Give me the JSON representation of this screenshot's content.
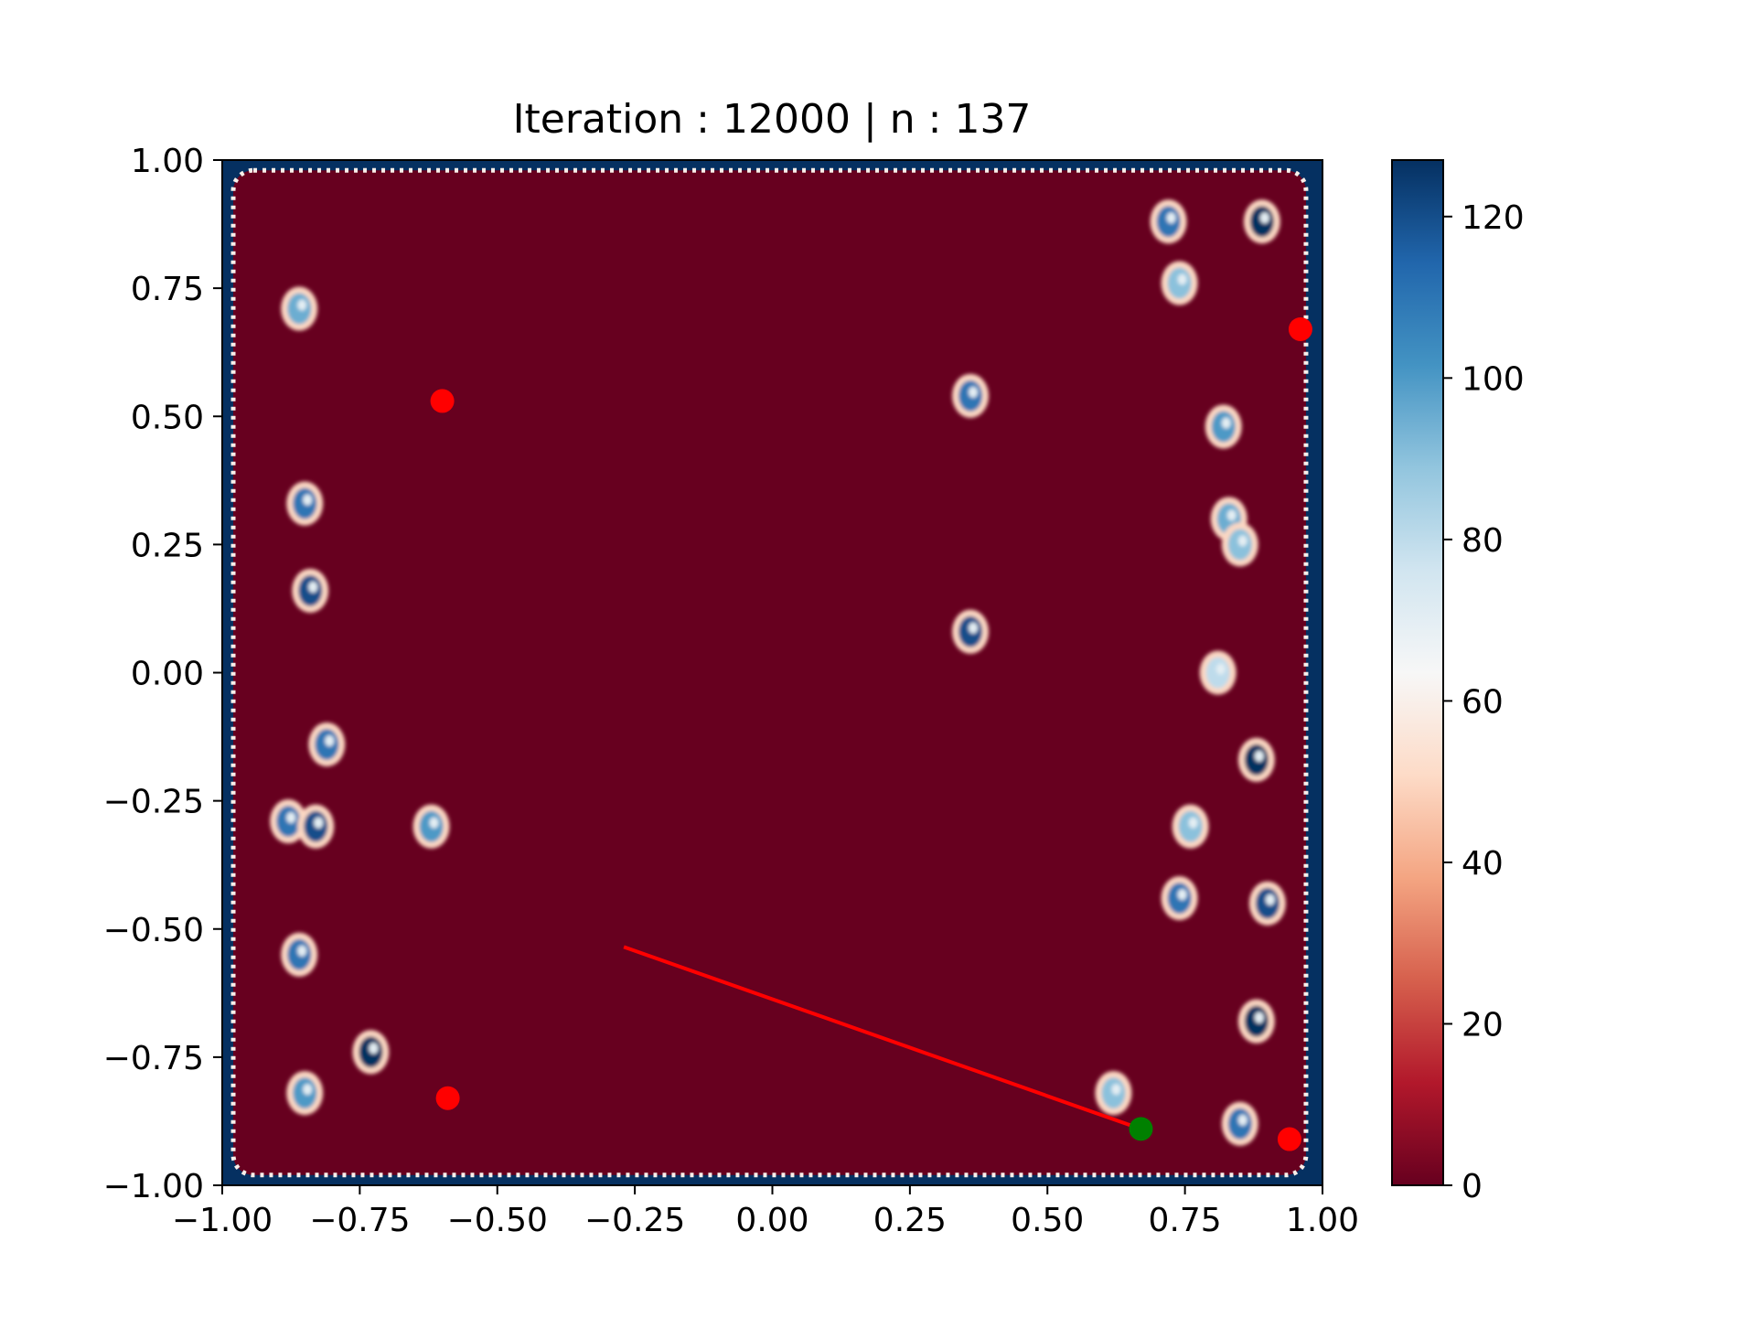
{
  "chart_data": {
    "type": "heatmap",
    "title": "Iteration : 12000 | n : 137",
    "xlim": [
      -1.0,
      1.0
    ],
    "ylim": [
      -1.0,
      1.0
    ],
    "x_ticks": [
      "−1.00",
      "−0.75",
      "−0.50",
      "−0.25",
      "0.00",
      "0.25",
      "0.50",
      "0.75",
      "1.00"
    ],
    "y_ticks": [
      "−1.00",
      "−0.75",
      "−0.50",
      "−0.25",
      "0.00",
      "0.25",
      "0.50",
      "0.75",
      "1.00"
    ],
    "x_tick_values": [
      -1.0,
      -0.75,
      -0.5,
      -0.25,
      0.0,
      0.25,
      0.5,
      0.75,
      1.0
    ],
    "y_tick_values": [
      -1.0,
      -0.75,
      -0.5,
      -0.25,
      0.0,
      0.25,
      0.5,
      0.75,
      1.0
    ],
    "colorbar": {
      "colormap": "RdBu",
      "range": [
        0,
        127
      ],
      "ticks": [
        "0",
        "20",
        "40",
        "60",
        "80",
        "100",
        "120"
      ],
      "tick_values": [
        0,
        20,
        40,
        60,
        80,
        100,
        120
      ],
      "colors": [
        "#67001f",
        "#b2182b",
        "#d6604d",
        "#f4a582",
        "#fddbc7",
        "#f7f7f7",
        "#d1e5f0",
        "#92c5de",
        "#4393c3",
        "#2166ac",
        "#053061"
      ]
    },
    "heatmap": {
      "background_value": 0,
      "border_value": 127,
      "interior_extent": [
        [
          -0.98,
          0.97
        ],
        [
          -0.98,
          0.98
        ]
      ],
      "blue_patches": [
        {
          "x": 0.72,
          "y": 0.88,
          "value": 110
        },
        {
          "x": 0.89,
          "y": 0.88,
          "value": 127
        },
        {
          "x": 0.74,
          "y": 0.76,
          "value": 90
        },
        {
          "x": -0.86,
          "y": 0.71,
          "value": 95
        },
        {
          "x": 0.36,
          "y": 0.54,
          "value": 110
        },
        {
          "x": 0.82,
          "y": 0.48,
          "value": 100
        },
        {
          "x": 0.83,
          "y": 0.3,
          "value": 95
        },
        {
          "x": 0.85,
          "y": 0.25,
          "value": 90
        },
        {
          "x": -0.85,
          "y": 0.33,
          "value": 110
        },
        {
          "x": -0.84,
          "y": 0.16,
          "value": 120
        },
        {
          "x": 0.36,
          "y": 0.08,
          "value": 120
        },
        {
          "x": 0.81,
          "y": 0.0,
          "value": 80
        },
        {
          "x": -0.81,
          "y": -0.14,
          "value": 110
        },
        {
          "x": 0.88,
          "y": -0.17,
          "value": 127
        },
        {
          "x": -0.88,
          "y": -0.29,
          "value": 110
        },
        {
          "x": -0.83,
          "y": -0.3,
          "value": 120
        },
        {
          "x": -0.62,
          "y": -0.3,
          "value": 100
        },
        {
          "x": 0.76,
          "y": -0.3,
          "value": 90
        },
        {
          "x": 0.74,
          "y": -0.44,
          "value": 110
        },
        {
          "x": 0.9,
          "y": -0.45,
          "value": 120
        },
        {
          "x": -0.86,
          "y": -0.55,
          "value": 110
        },
        {
          "x": -0.73,
          "y": -0.74,
          "value": 127
        },
        {
          "x": 0.88,
          "y": -0.68,
          "value": 127
        },
        {
          "x": -0.85,
          "y": -0.82,
          "value": 100
        },
        {
          "x": 0.62,
          "y": -0.82,
          "value": 90
        },
        {
          "x": 0.85,
          "y": -0.88,
          "value": 110
        }
      ]
    },
    "series": [
      {
        "type": "scatter",
        "color": "#ff0000",
        "points": [
          [
            -0.6,
            0.53
          ],
          [
            0.96,
            0.67
          ],
          [
            -0.59,
            -0.83
          ],
          [
            0.94,
            -0.91
          ]
        ]
      },
      {
        "type": "scatter",
        "color": "#008000",
        "points": [
          [
            0.67,
            -0.89
          ]
        ]
      },
      {
        "type": "line",
        "color": "#ff0000",
        "points": [
          [
            -0.27,
            -0.535
          ],
          [
            0.67,
            -0.89
          ]
        ]
      }
    ]
  }
}
